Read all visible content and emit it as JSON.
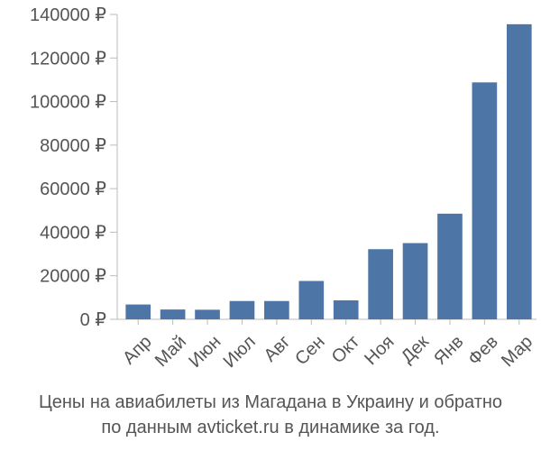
{
  "chart_data": {
    "type": "bar",
    "categories": [
      "Апр",
      "Май",
      "Июн",
      "Июл",
      "Авг",
      "Сен",
      "Окт",
      "Ноя",
      "Дек",
      "Янв",
      "Фев",
      "Мар"
    ],
    "values": [
      6800,
      4500,
      4400,
      8400,
      8400,
      17600,
      8700,
      32200,
      35000,
      48500,
      108800,
      135500
    ],
    "ylim": [
      0,
      140000
    ],
    "yticks": [
      0,
      20000,
      40000,
      60000,
      80000,
      100000,
      120000,
      140000
    ],
    "ytick_labels": [
      "0 ₽",
      "20000 ₽",
      "40000 ₽",
      "60000 ₽",
      "80000 ₽",
      "100000 ₽",
      "120000 ₽",
      "140000 ₽"
    ],
    "grid": false,
    "bar_color": "#4d76a7",
    "axis_color": "#bbbbbb",
    "text_color": "#555555"
  },
  "caption": {
    "line1": "Цены на авиабилеты из Магадана в Украину и обратно",
    "line2": "по данным avticket.ru в динамике за год."
  }
}
